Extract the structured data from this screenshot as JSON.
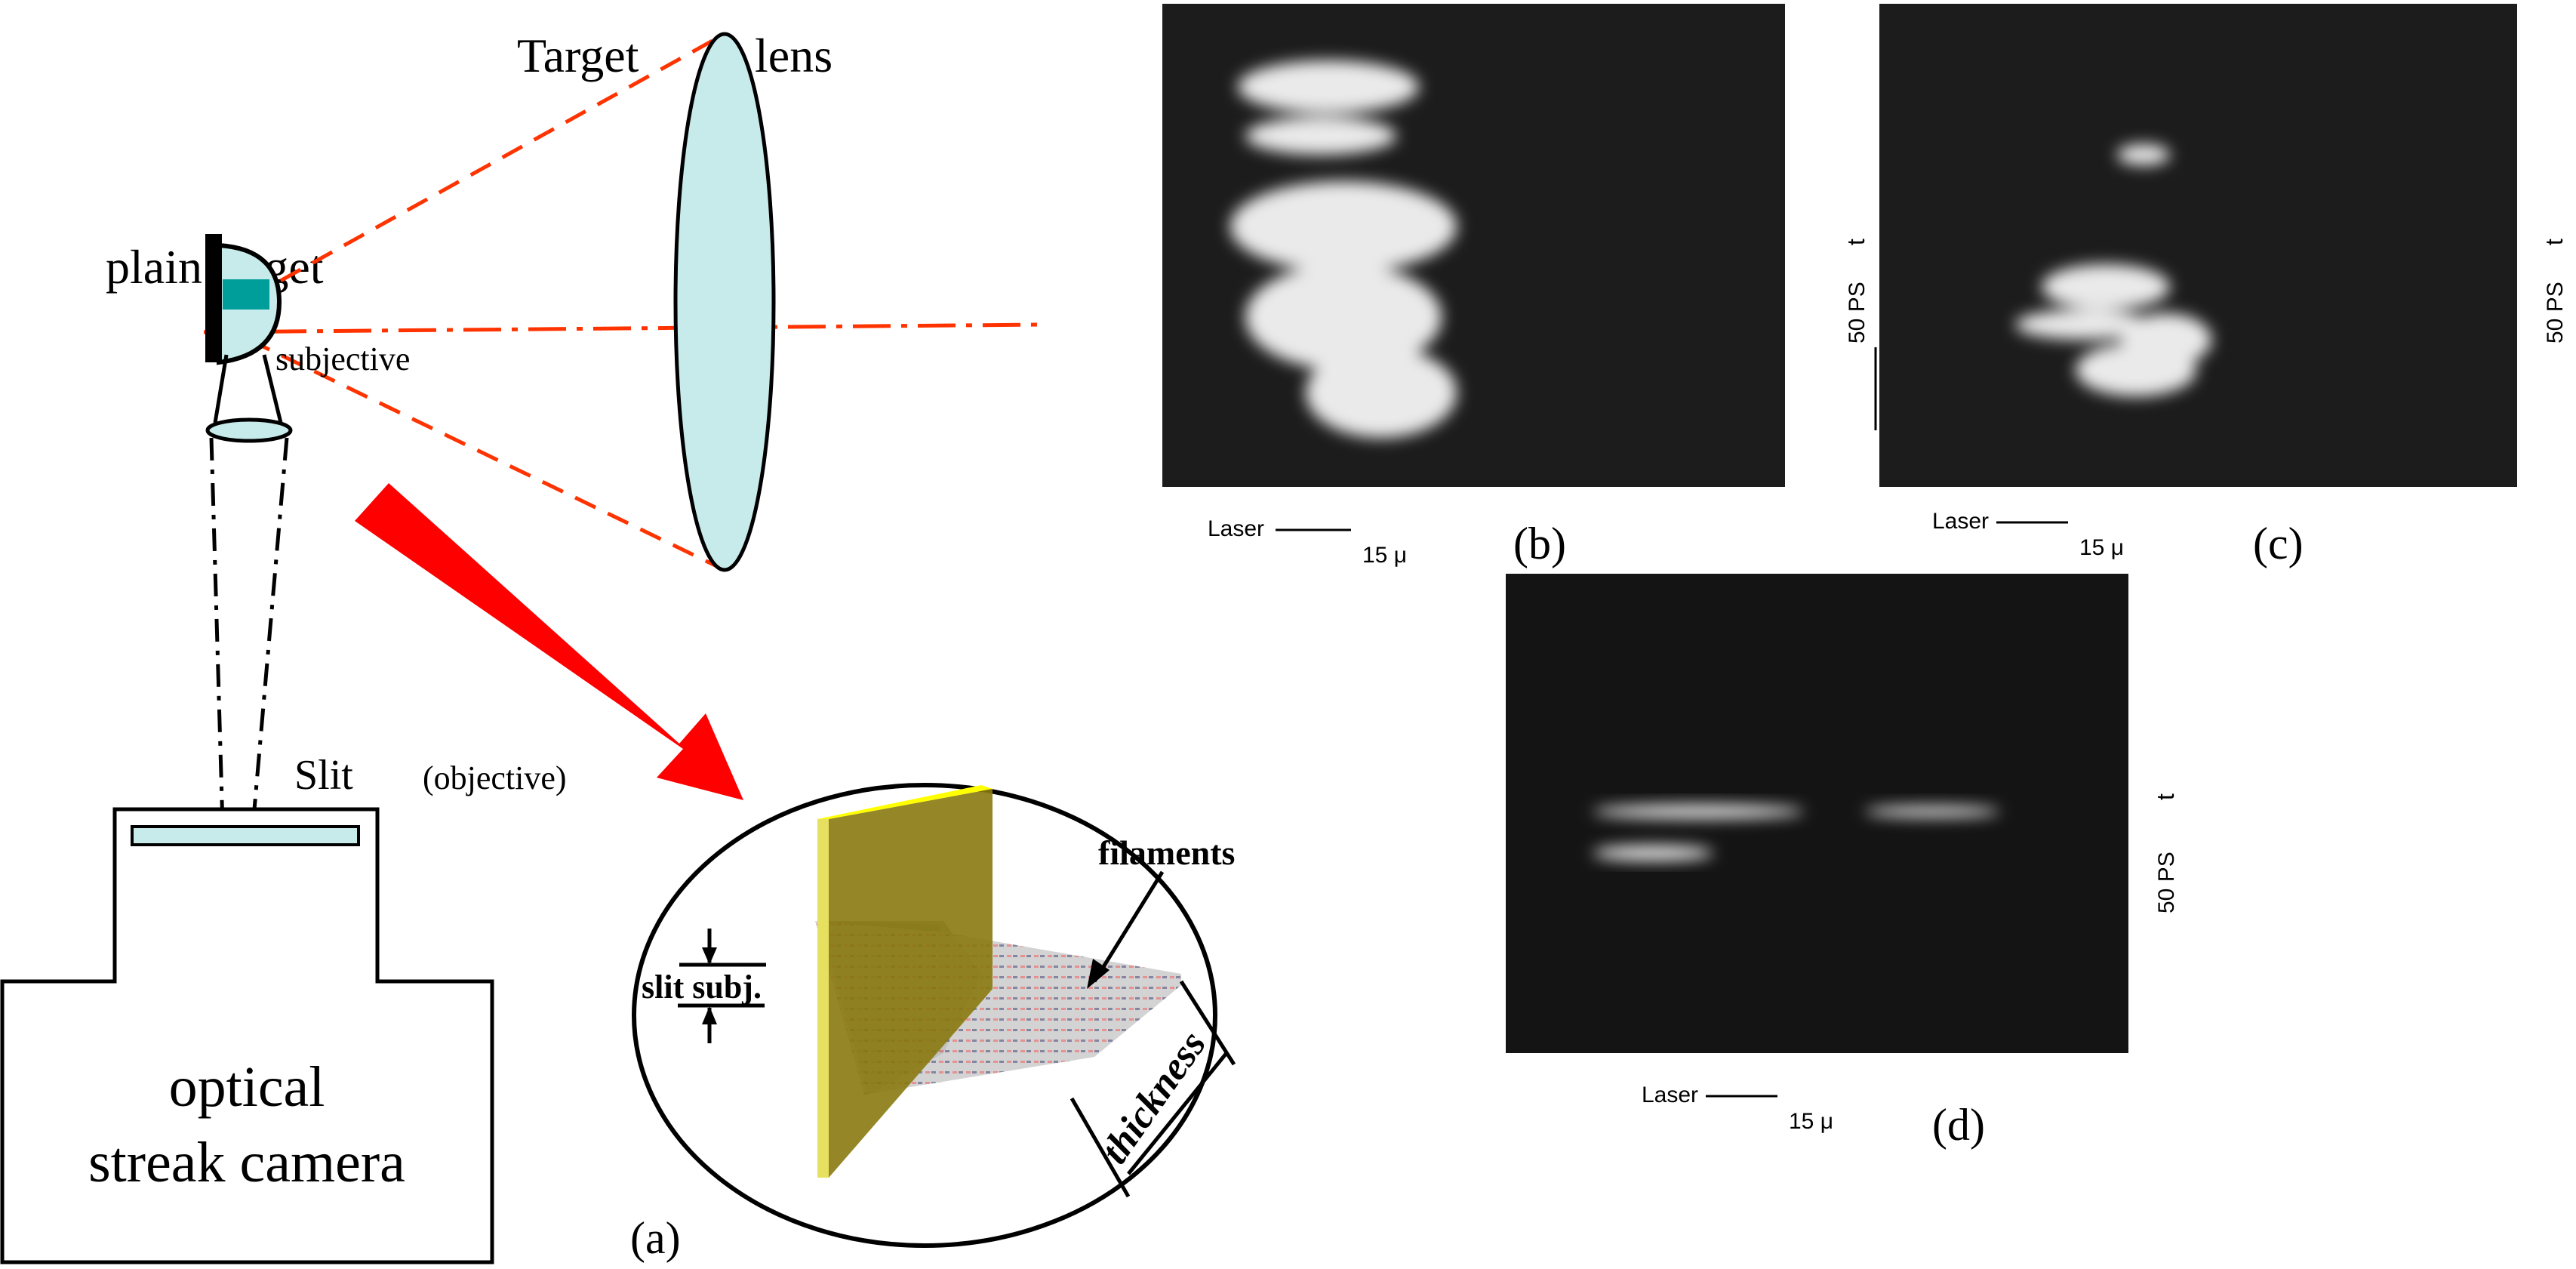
{
  "colors": {
    "beam": "#ff3300",
    "lens_fill": "#c7ebeb",
    "target_spot": "#009e9a",
    "arrow": "#ff0000",
    "plate": "#8a7a10",
    "plate_edge": "#ffff00",
    "photo_bg": "#1a1a1a"
  },
  "panel_a": {
    "target_label": "Target",
    "lens_label": "lens",
    "plain_target_label": "plain target",
    "subjective_label": "subjective",
    "slit_label": "Slit",
    "objective_label": "(objective)",
    "camera_label_line1": "optical",
    "camera_label_line2": "streak camera",
    "panel_label": "(a)",
    "inset": {
      "filaments_label": "filaments",
      "slit_subj_label": "slit subj.",
      "thickness_label": "thickness"
    }
  },
  "photos": [
    {
      "panel_label": "(b)",
      "laser_label": "Laser",
      "scale_label": "15 μ",
      "time_label": "t",
      "time_scale_label": "50 PS"
    },
    {
      "panel_label": "(c)",
      "laser_label": "Laser",
      "scale_label": "15 μ",
      "time_label": "t",
      "time_scale_label": "50 PS"
    },
    {
      "panel_label": "(d)",
      "laser_label": "Laser",
      "scale_label": "15 μ",
      "time_label": "t",
      "time_scale_label": "50 PS"
    }
  ]
}
